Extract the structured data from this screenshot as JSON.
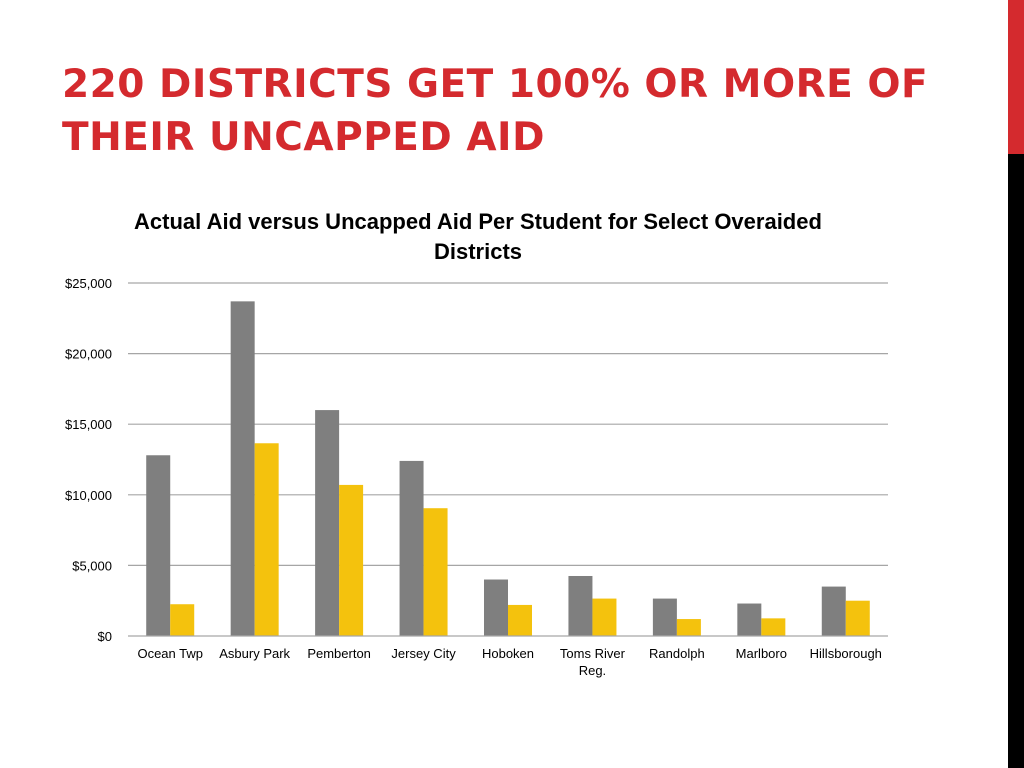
{
  "slide": {
    "title": "220 DISTRICTS GET 100% OR MORE OF THEIR UNCAPPED AID"
  },
  "colors": {
    "title_red": "#d42a2e",
    "side_bar_red": "#d42a2e",
    "side_bar_black": "#000000",
    "series_actual": "#7f7f7f",
    "series_uncapped": "#f4c20d",
    "gridline": "#a6a6a6"
  },
  "chart_data": {
    "type": "bar",
    "title": "Actual Aid versus Uncapped Aid Per Student for Select Overaided Districts",
    "xlabel": "",
    "ylabel": "",
    "categories": [
      "Ocean Twp",
      "Asbury Park",
      "Pemberton",
      "Jersey City",
      "Hoboken",
      "Toms River Reg.",
      "Randolph",
      "Marlboro",
      "Hillsborough"
    ],
    "category_label_lines": [
      [
        "Ocean Twp"
      ],
      [
        "Asbury Park"
      ],
      [
        "Pemberton"
      ],
      [
        "Jersey City"
      ],
      [
        "Hoboken"
      ],
      [
        "Toms River",
        "Reg."
      ],
      [
        "Randolph"
      ],
      [
        "Marlboro"
      ],
      [
        "Hillsborough"
      ]
    ],
    "series": [
      {
        "values": [
          12800,
          23700,
          16000,
          12400,
          4000,
          4250,
          2650,
          2300,
          3500
        ]
      },
      {
        "values": [
          2250,
          13650,
          10700,
          9050,
          2200,
          2650,
          1200,
          1250,
          2500
        ]
      }
    ],
    "ylim": [
      0,
      25000
    ],
    "yticks": [
      0,
      5000,
      10000,
      15000,
      20000,
      25000
    ],
    "ytick_labels": [
      "$0",
      "$5,000",
      "$10,000",
      "$15,000",
      "$20,000",
      "$25,000"
    ],
    "grid": true,
    "legend": "none"
  }
}
